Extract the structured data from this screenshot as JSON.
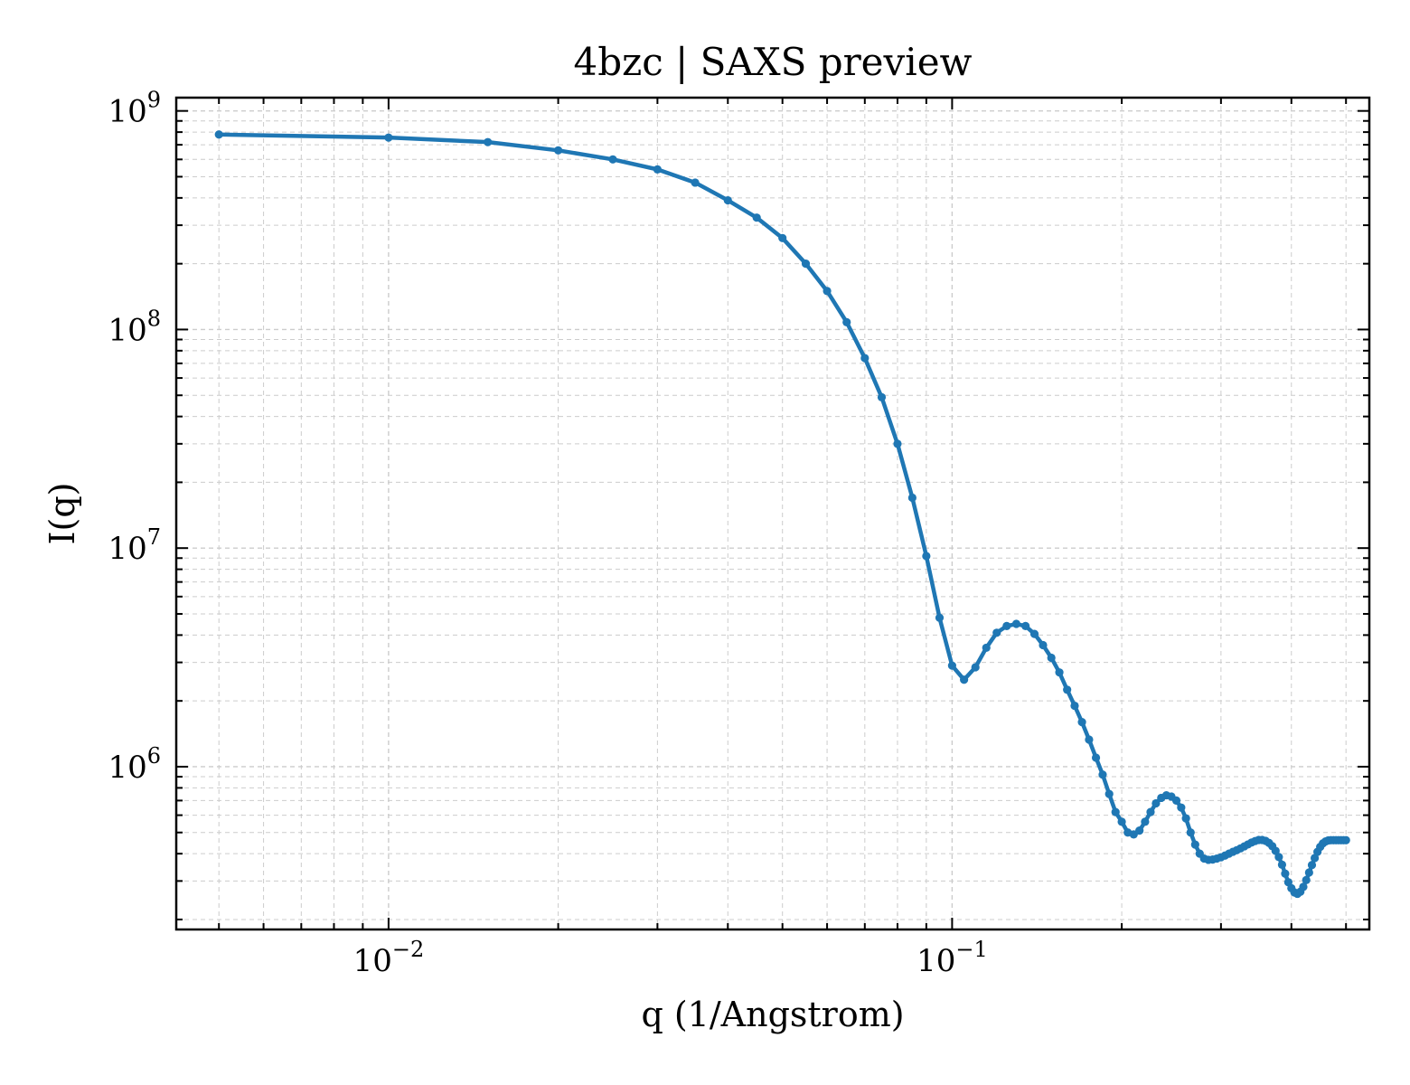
{
  "chart_data": {
    "type": "line",
    "title": "4bzc | SAXS preview",
    "xlabel": "q (1/Angstrom)",
    "ylabel": "I(q)",
    "xscale": "log",
    "yscale": "log",
    "xlim": [
      0.0042,
      0.55
    ],
    "ylim": [
      180000,
      1150000000
    ],
    "grid": true,
    "legend": "none",
    "color": "#1f77b4",
    "xticks": [
      {
        "value": 0.01,
        "base": "10",
        "exp": "−2"
      },
      {
        "value": 0.1,
        "base": "10",
        "exp": "−1"
      }
    ],
    "yticks": [
      {
        "value": 1000000,
        "base": "10",
        "exp": "6"
      },
      {
        "value": 10000000,
        "base": "10",
        "exp": "7"
      },
      {
        "value": 100000000,
        "base": "10",
        "exp": "8"
      },
      {
        "value": 1000000000,
        "base": "10",
        "exp": "9"
      }
    ],
    "series": [
      {
        "x": [
          0.005,
          0.01,
          0.015,
          0.02,
          0.025,
          0.03,
          0.035,
          0.04,
          0.045,
          0.05,
          0.055,
          0.06,
          0.065,
          0.07,
          0.075,
          0.08,
          0.085,
          0.09,
          0.095,
          0.1,
          0.105,
          0.11,
          0.115,
          0.12,
          0.125,
          0.13,
          0.135,
          0.14,
          0.145,
          0.15,
          0.155,
          0.16,
          0.165,
          0.17,
          0.175,
          0.18,
          0.185,
          0.19,
          0.195,
          0.2,
          0.205,
          0.21,
          0.215,
          0.22,
          0.225,
          0.23,
          0.235,
          0.24,
          0.245,
          0.25,
          0.255,
          0.26,
          0.265,
          0.27,
          0.275,
          0.28,
          0.285,
          0.29,
          0.295,
          0.3,
          0.305,
          0.31,
          0.315,
          0.32,
          0.325,
          0.33,
          0.335,
          0.34,
          0.345,
          0.35,
          0.355,
          0.36,
          0.365,
          0.37,
          0.375,
          0.38,
          0.385,
          0.39,
          0.395,
          0.4,
          0.405,
          0.41,
          0.415,
          0.42,
          0.425,
          0.43,
          0.435,
          0.44,
          0.445,
          0.45,
          0.455,
          0.46,
          0.465,
          0.47,
          0.475,
          0.48,
          0.485,
          0.49,
          0.495,
          0.5
        ],
        "y": [
          780000000,
          755000000,
          720000000,
          660000000,
          600000000,
          540000000,
          470000000,
          390000000,
          325000000,
          262000000,
          200000000,
          150000000,
          108000000,
          74000000,
          49000000,
          30000000,
          17000000,
          9200000,
          4800000,
          2900000,
          2500000,
          2850000,
          3500000,
          4100000,
          4400000,
          4500000,
          4400000,
          4050000,
          3600000,
          3150000,
          2700000,
          2250000,
          1900000,
          1600000,
          1330000,
          1100000,
          920000,
          750000,
          620000,
          560000,
          500000,
          490000,
          510000,
          560000,
          620000,
          680000,
          720000,
          740000,
          730000,
          700000,
          650000,
          580000,
          500000,
          440000,
          400000,
          380000,
          375000,
          376000,
          380000,
          385000,
          392000,
          400000,
          408000,
          415000,
          423000,
          432000,
          441000,
          450000,
          457000,
          462000,
          462000,
          458000,
          448000,
          433000,
          412000,
          386000,
          356000,
          324000,
          296000,
          278000,
          266000,
          262000,
          268000,
          282000,
          303000,
          328000,
          355000,
          382000,
          408000,
          430000,
          446000,
          455000,
          460000,
          461000,
          461000,
          461000,
          461000,
          461000,
          461000,
          461000
        ]
      }
    ]
  }
}
